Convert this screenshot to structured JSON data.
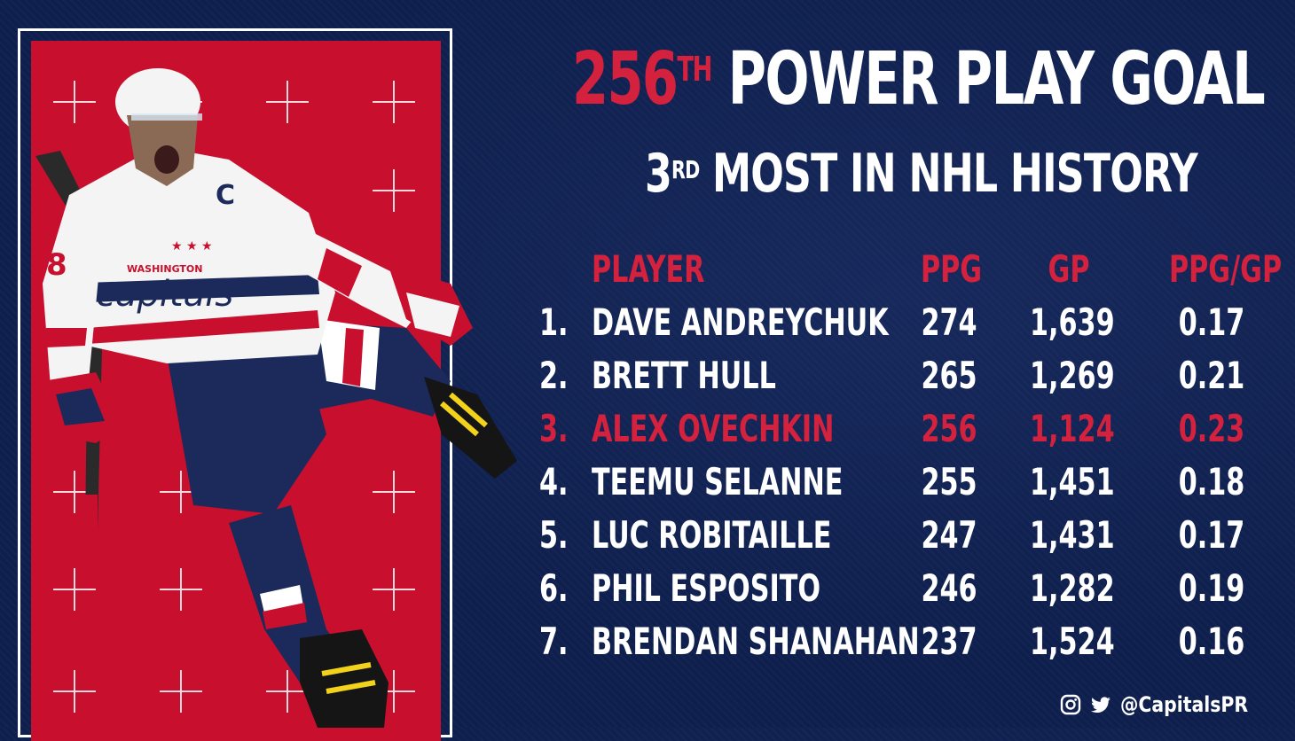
{
  "title": {
    "number": "256",
    "number_sup": "TH",
    "text": "POWER PLAY GOAL"
  },
  "subtitle": {
    "ordinal": "3",
    "ordinal_sup": "RD",
    "text": "MOST IN NHL HISTORY"
  },
  "table": {
    "headers": {
      "player": "PLAYER",
      "ppg": "PPG",
      "gp": "GP",
      "ratio": "PPG/GP"
    },
    "highlight_color": "#d4213d",
    "rows": [
      {
        "rank": "1.",
        "player": "DAVE ANDREYCHUK",
        "ppg": "274",
        "gp": "1,639",
        "ratio": "0.17",
        "highlight": false
      },
      {
        "rank": "2.",
        "player": "BRETT HULL",
        "ppg": "265",
        "gp": "1,269",
        "ratio": "0.21",
        "highlight": false
      },
      {
        "rank": "3.",
        "player": "ALEX OVECHKIN",
        "ppg": "256",
        "gp": "1,124",
        "ratio": "0.23",
        "highlight": true
      },
      {
        "rank": "4.",
        "player": "TEEMU SELANNE",
        "ppg": "255",
        "gp": "1,451",
        "ratio": "0.18",
        "highlight": false
      },
      {
        "rank": "5.",
        "player": "LUC ROBITAILLE",
        "ppg": "247",
        "gp": "1,431",
        "ratio": "0.17",
        "highlight": false
      },
      {
        "rank": "6.",
        "player": "PHIL ESPOSITO",
        "ppg": "246",
        "gp": "1,282",
        "ratio": "0.19",
        "highlight": false
      },
      {
        "rank": "7.",
        "player": "BRENDAN SHANAHAN",
        "ppg": "237",
        "gp": "1,524",
        "ratio": "0.16",
        "highlight": false
      }
    ]
  },
  "footer": {
    "handle": "@CapitalsPR",
    "icons": [
      "instagram-icon",
      "twitter-icon"
    ]
  },
  "photo": {
    "jersey_text": "capitals",
    "jersey_city": "WASHINGTON",
    "number": "8",
    "captain": "C"
  },
  "colors": {
    "navy": "#0e1f4d",
    "red": "#c8102e",
    "accent_red": "#d4213d",
    "white": "#ffffff"
  }
}
